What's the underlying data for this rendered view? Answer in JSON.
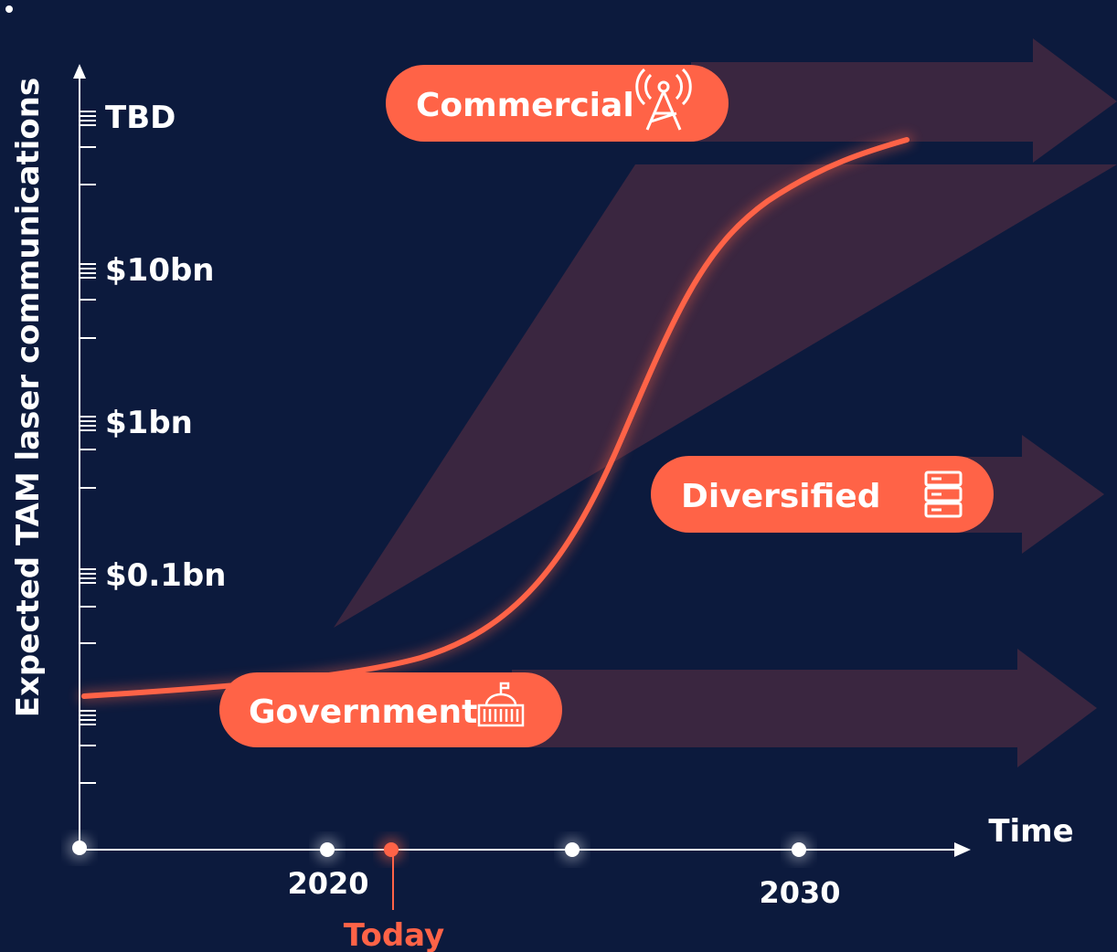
{
  "y_axis": {
    "label": "Expected TAM laser communications",
    "ticks": [
      "TBD",
      "$10bn",
      "$1bn",
      "$0.1bn"
    ]
  },
  "x_axis": {
    "label": "Time",
    "ticks": [
      "2020",
      "2030"
    ],
    "marker": "Today"
  },
  "segments": [
    "Commercial",
    "Diversified",
    "Government"
  ]
}
